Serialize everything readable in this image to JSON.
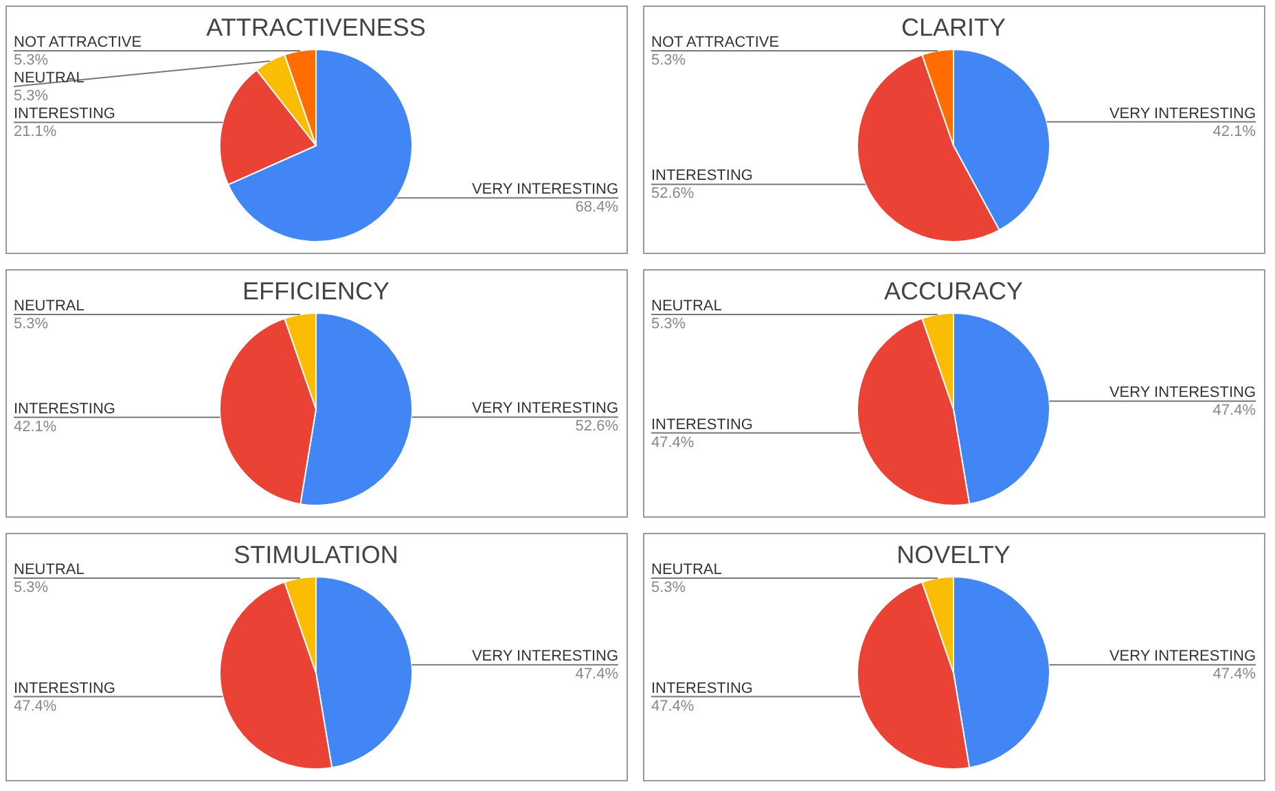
{
  "chart_data": [
    {
      "type": "pie",
      "title": "ATTRACTIVENESS",
      "categories": [
        "VERY INTERESTING",
        "INTERESTING",
        "NEUTRAL",
        "NOT ATTRACTIVE"
      ],
      "values": [
        68.4,
        21.1,
        5.3,
        5.3
      ],
      "colors": [
        "#4285f4",
        "#ea4335",
        "#fbbc04",
        "#ff6d01"
      ],
      "value_labels": [
        "68.4%",
        "21.1%",
        "5.3%",
        "5.3%"
      ]
    },
    {
      "type": "pie",
      "title": "CLARITY",
      "categories": [
        "VERY INTERESTING",
        "INTERESTING",
        "NOT ATTRACTIVE"
      ],
      "values": [
        42.1,
        52.6,
        5.3
      ],
      "colors": [
        "#4285f4",
        "#ea4335",
        "#ff6d01"
      ],
      "value_labels": [
        "42.1%",
        "52.6%",
        "5.3%"
      ]
    },
    {
      "type": "pie",
      "title": "EFFICIENCY",
      "categories": [
        "VERY INTERESTING",
        "INTERESTING",
        "NEUTRAL"
      ],
      "values": [
        52.6,
        42.1,
        5.3
      ],
      "colors": [
        "#4285f4",
        "#ea4335",
        "#fbbc04"
      ],
      "value_labels": [
        "52.6%",
        "42.1%",
        "5.3%"
      ]
    },
    {
      "type": "pie",
      "title": "ACCURACY",
      "categories": [
        "VERY INTERESTING",
        "INTERESTING",
        "NEUTRAL"
      ],
      "values": [
        47.4,
        47.4,
        5.3
      ],
      "colors": [
        "#4285f4",
        "#ea4335",
        "#fbbc04"
      ],
      "value_labels": [
        "47.4%",
        "47.4%",
        "5.3%"
      ]
    },
    {
      "type": "pie",
      "title": "STIMULATION",
      "categories": [
        "VERY INTERESTING",
        "INTERESTING",
        "NEUTRAL"
      ],
      "values": [
        47.4,
        47.4,
        5.3
      ],
      "colors": [
        "#4285f4",
        "#ea4335",
        "#fbbc04"
      ],
      "value_labels": [
        "47.4%",
        "47.4%",
        "5.3%"
      ]
    },
    {
      "type": "pie",
      "title": "NOVELTY",
      "categories": [
        "VERY INTERESTING",
        "INTERESTING",
        "NEUTRAL"
      ],
      "values": [
        47.4,
        47.4,
        5.3
      ],
      "colors": [
        "#4285f4",
        "#ea4335",
        "#fbbc04"
      ],
      "value_labels": [
        "47.4%",
        "47.4%",
        "5.3%"
      ]
    }
  ]
}
